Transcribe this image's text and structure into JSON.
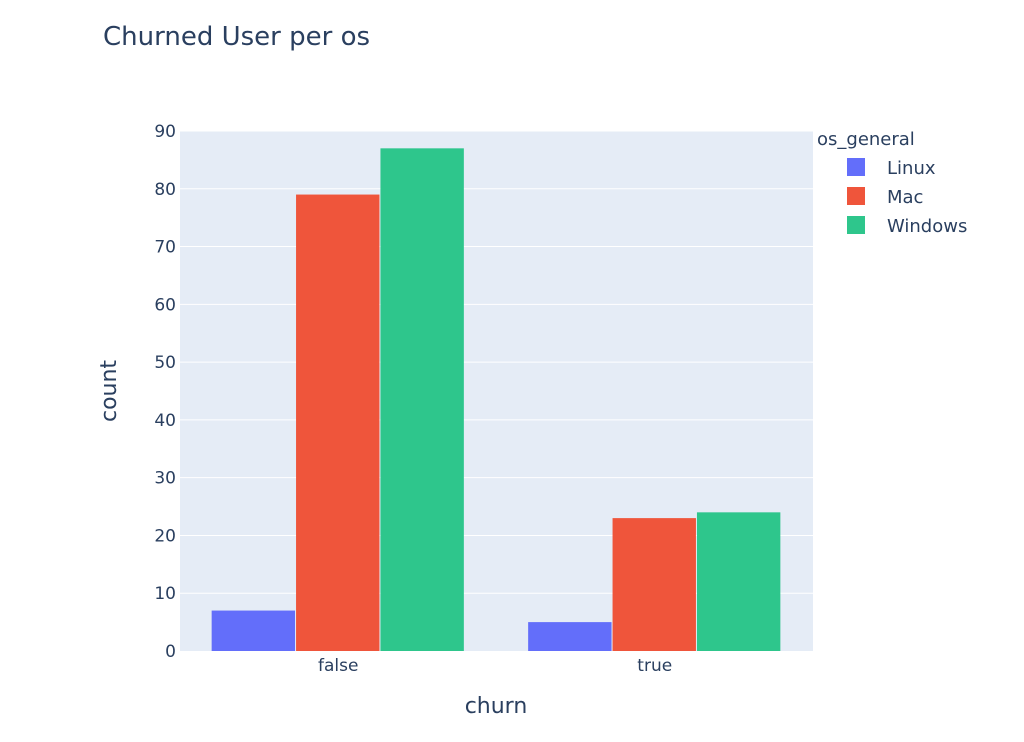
{
  "chart_data": {
    "type": "bar",
    "title": "Churned User per os",
    "xlabel": "churn",
    "ylabel": "count",
    "categories": [
      "false",
      "true"
    ],
    "series": [
      {
        "name": "Linux",
        "values": [
          7,
          5
        ],
        "color": "#636efa"
      },
      {
        "name": "Mac",
        "values": [
          79,
          23
        ],
        "color": "#ef553b"
      },
      {
        "name": "Windows",
        "values": [
          87,
          24
        ],
        "color": "#2ec68c"
      }
    ],
    "ylim": [
      0,
      90
    ],
    "yticks": [
      0,
      10,
      20,
      30,
      40,
      50,
      60,
      70,
      80,
      90
    ],
    "legend": {
      "title": "os_general",
      "position": "top-right"
    },
    "grid": true,
    "colors": {
      "plot_bg": "#e5ecf6",
      "grid": "#ffffff",
      "text": "#2a3f5f"
    }
  }
}
